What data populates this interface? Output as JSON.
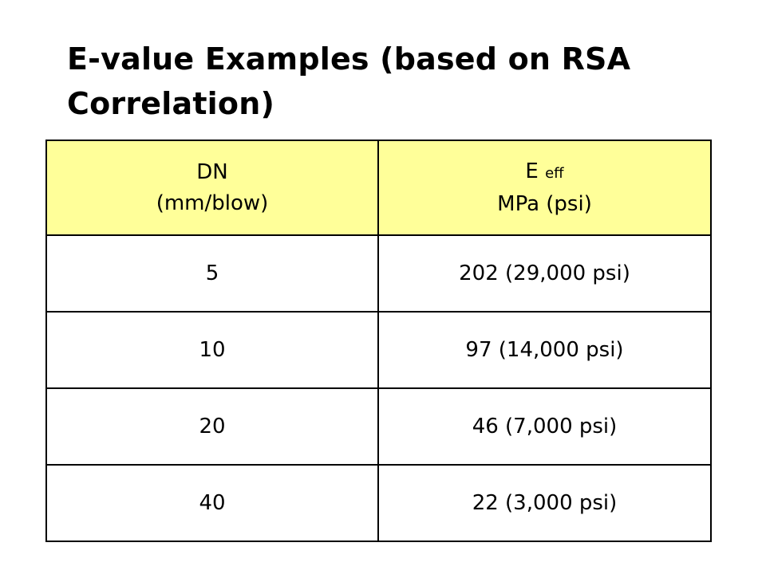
{
  "title": "E-value Examples (based on RSA Correlation)",
  "table": {
    "header": {
      "dn_label": "DN",
      "dn_unit": "(mm/blow)",
      "eff_symbol": "E",
      "eff_subscript": "eff",
      "eff_unit": "MPa (psi)"
    },
    "rows": [
      {
        "dn": "5",
        "eff": "202 (29,000 psi)"
      },
      {
        "dn": "10",
        "eff": "97 (14,000 psi)"
      },
      {
        "dn": "20",
        "eff": "46 (7,000 psi)"
      },
      {
        "dn": "40",
        "eff": "22 (3,000 psi)"
      }
    ],
    "header_color": "#ffff99"
  }
}
